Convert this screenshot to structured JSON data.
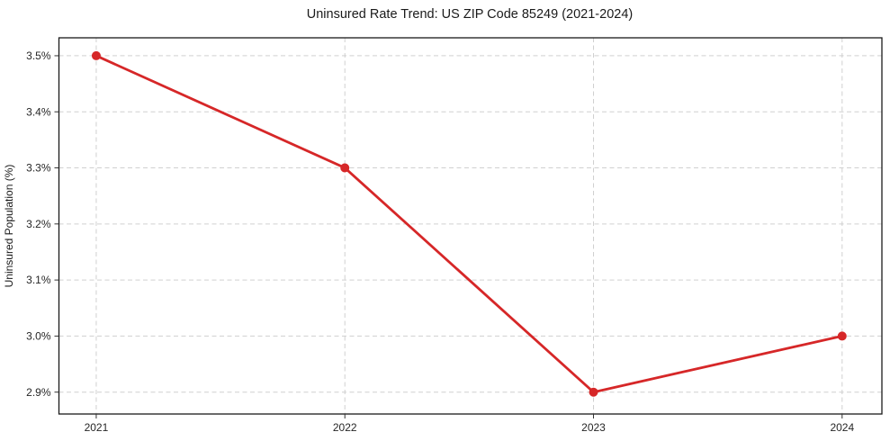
{
  "chart_data": {
    "type": "line",
    "title": "Uninsured Rate Trend: US ZIP Code 85249 (2021-2024)",
    "xlabel": "",
    "ylabel": "Uninsured Population (%)",
    "x": [
      2021,
      2022,
      2023,
      2024
    ],
    "x_tick_labels": [
      "2021",
      "2022",
      "2023",
      "2024"
    ],
    "series": [
      {
        "name": "Uninsured Rate",
        "values": [
          3.5,
          3.3,
          2.9,
          3.0
        ]
      }
    ],
    "y_ticks": [
      2.9,
      3.0,
      3.1,
      3.2,
      3.3,
      3.4,
      3.5
    ],
    "y_tick_labels": [
      "2.9%",
      "3.0%",
      "3.1%",
      "3.2%",
      "3.3%",
      "3.4%",
      "3.5%"
    ],
    "xlim": [
      2020.85,
      2024.16
    ],
    "ylim": [
      2.861,
      3.532
    ],
    "grid": true,
    "grid_style": "dashed",
    "legend": false,
    "colors": {
      "line": "#d62728",
      "marker": "#d62728",
      "grid": "#d0d0d0",
      "spine": "#1a1a1a",
      "tick": "#333333",
      "text": "#1a1a1a",
      "background": "#ffffff"
    }
  }
}
